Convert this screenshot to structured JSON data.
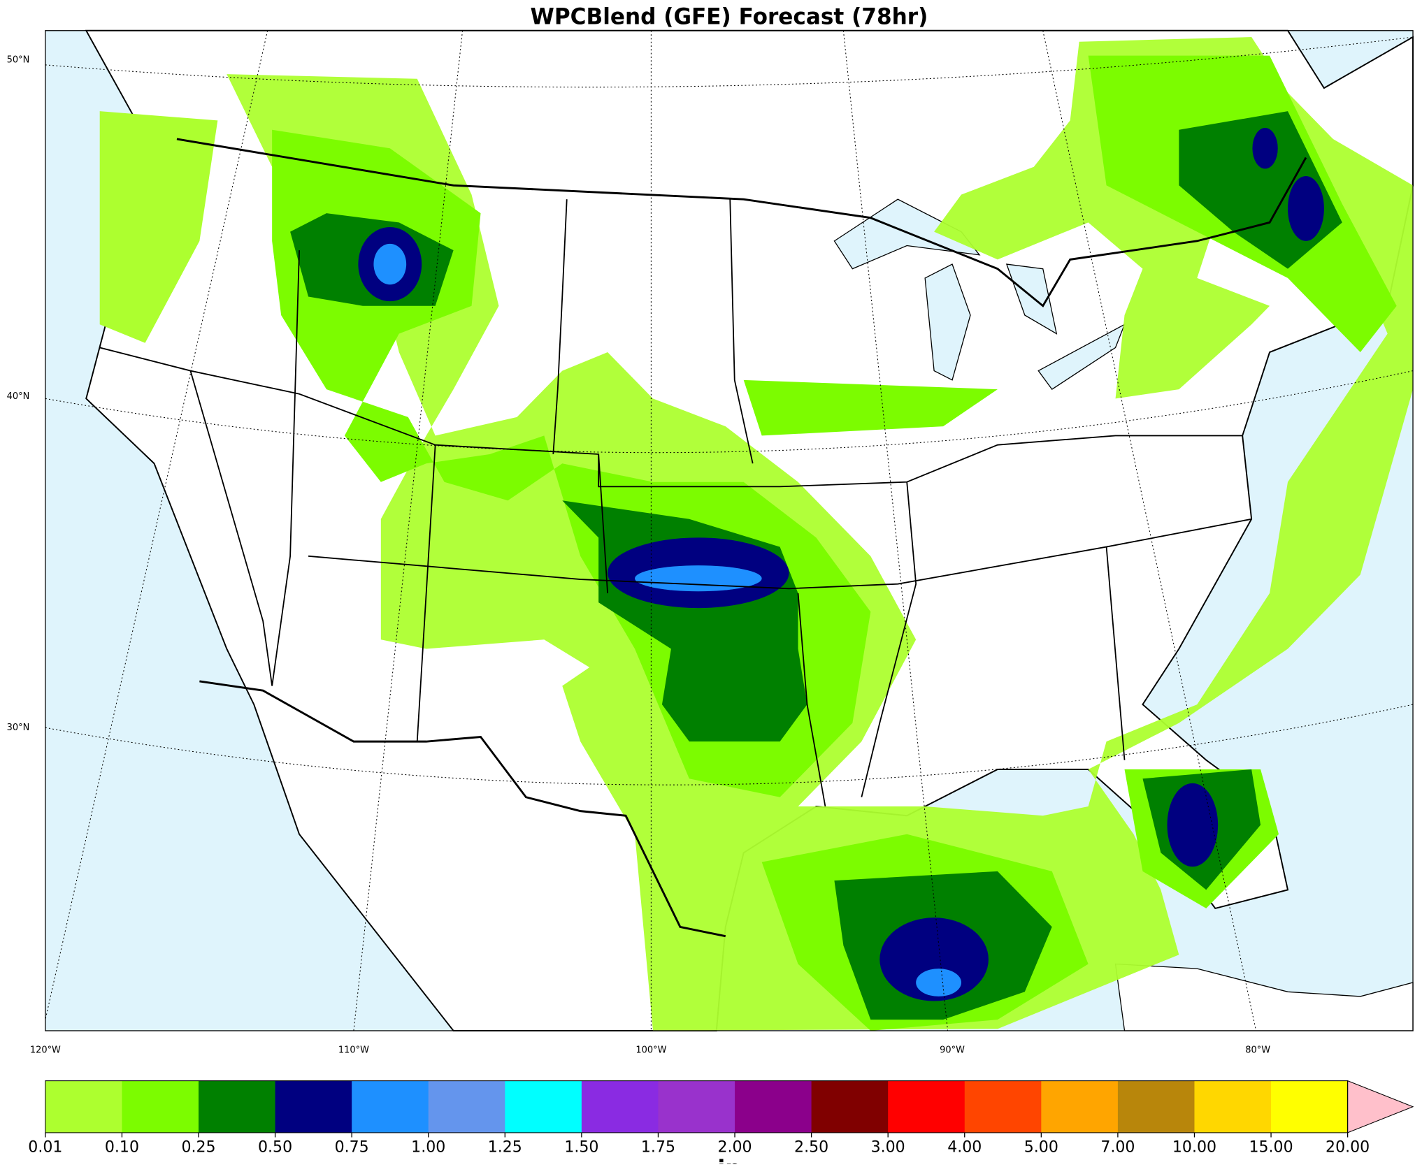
{
  "title": "WPCBlend (GFE) Forecast (78hr)",
  "map": {
    "lat_labels": [
      "50°N",
      "40°N",
      "30°N"
    ],
    "lon_labels": [
      "120°W",
      "110°W",
      "100°W",
      "90°W",
      "80°W"
    ]
  },
  "colorbar": {
    "label": "in",
    "boundaries": [
      0.01,
      {
        "value": 0.1,
        "label": "0.10"
      },
      0.25,
      {
        "value": 0.5,
        "label": "0.50"
      },
      0.75,
      {
        "value": 1,
        "label": "1.00"
      },
      1.25,
      {
        "value": 1.5,
        "label": "1.50"
      },
      1.75,
      {
        "value": 2,
        "label": "2.00"
      },
      {
        "value": 2.5,
        "label": "2.50"
      },
      {
        "value": 3,
        "label": "3.00"
      },
      {
        "value": 4,
        "label": "4.00"
      },
      {
        "value": 5,
        "label": "5.00"
      },
      {
        "value": 7,
        "label": "7.00"
      },
      {
        "value": 10,
        "label": "10.00"
      },
      {
        "value": 15,
        "label": "15.00"
      },
      {
        "value": 20,
        "label": "20.00"
      }
    ],
    "colors": [
      "#adff2f",
      "#7cfc00",
      "#008000",
      "#000080",
      "#1e90ff",
      "#6495ed",
      "#00ffff",
      "#8a2be2",
      "#9932cc",
      "#8b008b",
      "#800000",
      "#ff0000",
      "#ff4500",
      "#ffa500",
      "#b8860b",
      "#ffd700",
      "#ffff00"
    ],
    "extend_color": "#ffc0cb"
  }
}
